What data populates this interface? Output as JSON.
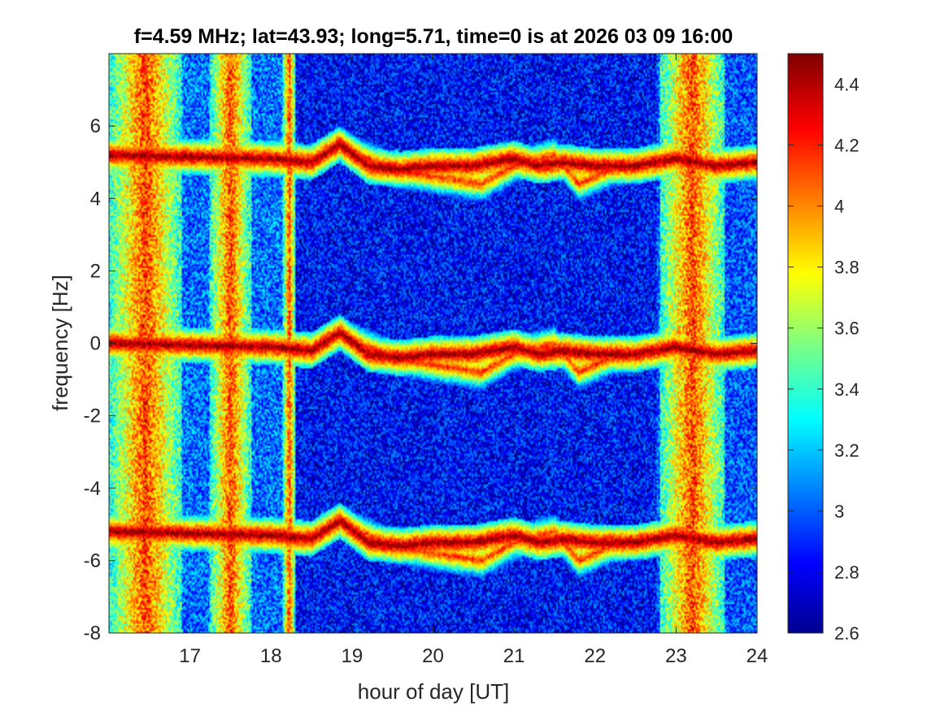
{
  "chart_data": {
    "type": "heatmap",
    "title": "f=4.59 MHz;  lat=43.93; long=5.71, time=0 is at 2026 03 09 16:00",
    "xlabel": "hour of day [UT]",
    "ylabel": "frequency [Hz]",
    "xlim": [
      16,
      24
    ],
    "ylim": [
      -8,
      8
    ],
    "xticks": [
      17,
      18,
      19,
      20,
      21,
      22,
      23,
      24
    ],
    "xtick_labels": [
      "17",
      "18",
      "19",
      "20",
      "21",
      "22",
      "23",
      "24"
    ],
    "yticks": [
      -8,
      -6,
      -4,
      -2,
      0,
      2,
      4,
      6
    ],
    "ytick_labels": [
      "-8",
      "-6",
      "-4",
      "-2",
      "0",
      "2",
      "4",
      "6"
    ],
    "colorbar": {
      "colormap": "jet",
      "range": [
        2.6,
        4.5
      ],
      "ticks": [
        2.6,
        2.8,
        3.0,
        3.2,
        3.4,
        3.6,
        3.8,
        4.0,
        4.2,
        4.4
      ],
      "tick_labels": [
        "2.6",
        "2.8",
        "3",
        "3.2",
        "3.4",
        "3.6",
        "3.8",
        "4",
        "4.2",
        "4.4"
      ]
    },
    "grid": false,
    "features": {
      "high_noise_bands_hour": [
        [
          16.0,
          16.9
        ],
        [
          17.25,
          17.75
        ],
        [
          18.15,
          18.3
        ],
        [
          22.8,
          23.6
        ]
      ],
      "trace_center_hz": [
        [
          16.0,
          0.0
        ],
        [
          18.0,
          -0.1
        ],
        [
          18.5,
          -0.2
        ],
        [
          18.85,
          0.3
        ],
        [
          19.2,
          -0.3
        ],
        [
          19.6,
          -0.4
        ],
        [
          20.0,
          -0.3
        ],
        [
          20.5,
          -0.3
        ],
        [
          21.0,
          -0.1
        ],
        [
          21.3,
          -0.3
        ],
        [
          21.6,
          -0.2
        ],
        [
          22.0,
          -0.3
        ],
        [
          22.5,
          -0.3
        ],
        [
          23.0,
          -0.1
        ],
        [
          23.5,
          -0.3
        ],
        [
          24.0,
          -0.2
        ]
      ],
      "trace_lower_branch_hz": [
        [
          18.9,
          0.2
        ],
        [
          19.5,
          -0.4
        ],
        [
          20.0,
          -0.6
        ],
        [
          20.6,
          -0.8
        ],
        [
          21.0,
          -0.3
        ],
        [
          21.5,
          0.0
        ],
        [
          21.8,
          -0.8
        ],
        [
          22.2,
          -0.4
        ],
        [
          22.6,
          -0.3
        ]
      ],
      "sideband_offset_hz": 5.2
    }
  }
}
